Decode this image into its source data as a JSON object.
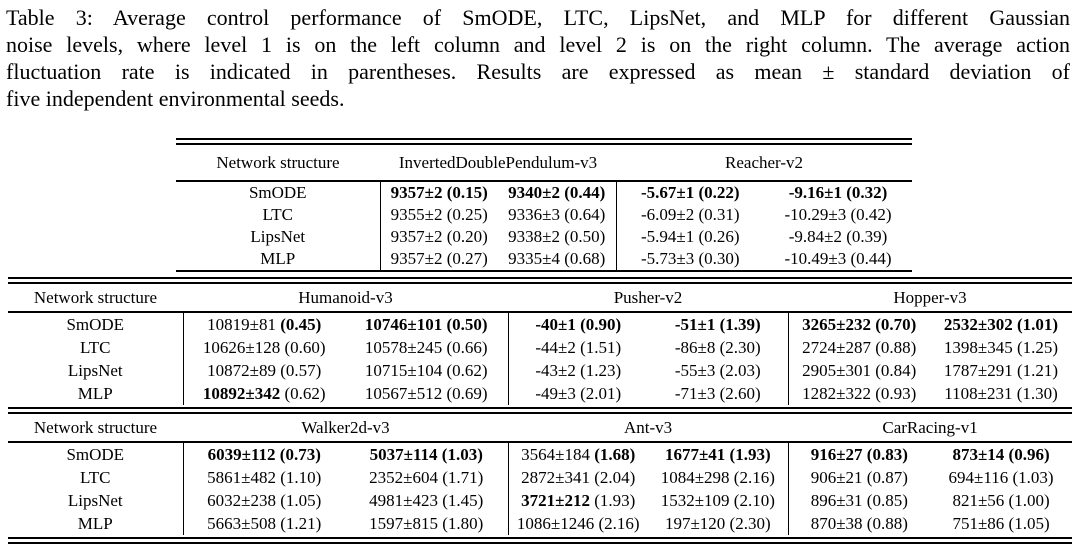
{
  "caption": {
    "lines": [
      "Table 3: Average control performance of SmODE, LTC, LipsNet, and MLP for different Gaussian",
      "noise levels, where level 1 is on the left column and level 2 is on the right column. The average action",
      "fluctuation rate is indicated in parentheses. Results are expressed as mean ± standard deviation of",
      "five independent environmental seeds."
    ]
  },
  "tables": [
    {
      "col_header": "Network structure",
      "envs": [
        "InvertedDoublePendulum-v3",
        "Reacher-v2"
      ],
      "rows": [
        {
          "name": "SmODE",
          "cells": [
            {
              "mean": "9357±2",
              "rate": "(0.15)",
              "bold": "all"
            },
            {
              "mean": "9340±2",
              "rate": "(0.44)",
              "bold": "all"
            },
            {
              "mean": "-5.67±1",
              "rate": "(0.22)",
              "bold": "all"
            },
            {
              "mean": "-9.16±1",
              "rate": "(0.32)",
              "bold": "all"
            }
          ]
        },
        {
          "name": "LTC",
          "cells": [
            {
              "mean": "9355±2",
              "rate": "(0.25)",
              "bold": "none"
            },
            {
              "mean": "9336±3",
              "rate": "(0.64)",
              "bold": "none"
            },
            {
              "mean": "-6.09±2",
              "rate": "(0.31)",
              "bold": "none"
            },
            {
              "mean": "-10.29±3",
              "rate": "(0.42)",
              "bold": "none"
            }
          ]
        },
        {
          "name": "LipsNet",
          "cells": [
            {
              "mean": "9357±2",
              "rate": "(0.20)",
              "bold": "none"
            },
            {
              "mean": "9338±2",
              "rate": "(0.50)",
              "bold": "none"
            },
            {
              "mean": "-5.94±1",
              "rate": "(0.26)",
              "bold": "none"
            },
            {
              "mean": "-9.84±2",
              "rate": "(0.39)",
              "bold": "none"
            }
          ]
        },
        {
          "name": "MLP",
          "cells": [
            {
              "mean": "9357±2",
              "rate": "(0.27)",
              "bold": "none"
            },
            {
              "mean": "9335±4",
              "rate": "(0.68)",
              "bold": "none"
            },
            {
              "mean": "-5.73±3",
              "rate": "(0.30)",
              "bold": "none"
            },
            {
              "mean": "-10.49±3",
              "rate": "(0.44)",
              "bold": "none"
            }
          ]
        }
      ]
    },
    {
      "col_header": "Network structure",
      "envs": [
        "Humanoid-v3",
        "Pusher-v2",
        "Hopper-v3"
      ],
      "rows": [
        {
          "name": "SmODE",
          "cells": [
            {
              "mean": "10819±81",
              "rate": "(0.45)",
              "bold": "rate"
            },
            {
              "mean": "10746±101",
              "rate": "(0.50)",
              "bold": "all"
            },
            {
              "mean": "-40±1",
              "rate": "(0.90)",
              "bold": "all"
            },
            {
              "mean": "-51±1",
              "rate": "(1.39)",
              "bold": "all"
            },
            {
              "mean": "3265±232",
              "rate": "(0.70)",
              "bold": "all"
            },
            {
              "mean": "2532±302",
              "rate": "(1.01)",
              "bold": "all"
            }
          ]
        },
        {
          "name": "LTC",
          "cells": [
            {
              "mean": "10626±128",
              "rate": "(0.60)",
              "bold": "none"
            },
            {
              "mean": "10578±245",
              "rate": "(0.66)",
              "bold": "none"
            },
            {
              "mean": "-44±2",
              "rate": "(1.51)",
              "bold": "none"
            },
            {
              "mean": "-86±8",
              "rate": "(2.30)",
              "bold": "none"
            },
            {
              "mean": "2724±287",
              "rate": "(0.88)",
              "bold": "none"
            },
            {
              "mean": "1398±345",
              "rate": "(1.25)",
              "bold": "none"
            }
          ]
        },
        {
          "name": "LipsNet",
          "cells": [
            {
              "mean": "10872±89",
              "rate": "(0.57)",
              "bold": "none"
            },
            {
              "mean": "10715±104",
              "rate": "(0.62)",
              "bold": "none"
            },
            {
              "mean": "-43±2",
              "rate": "(1.23)",
              "bold": "none"
            },
            {
              "mean": "-55±3",
              "rate": "(2.03)",
              "bold": "none"
            },
            {
              "mean": "2905±301",
              "rate": "(0.84)",
              "bold": "none"
            },
            {
              "mean": "1787±291",
              "rate": "(1.21)",
              "bold": "none"
            }
          ]
        },
        {
          "name": "MLP",
          "cells": [
            {
              "mean": "10892±342",
              "rate": "(0.62)",
              "bold": "mean"
            },
            {
              "mean": "10567±512",
              "rate": "(0.69)",
              "bold": "none"
            },
            {
              "mean": "-49±3",
              "rate": "(2.01)",
              "bold": "none"
            },
            {
              "mean": "-71±3",
              "rate": "(2.60)",
              "bold": "none"
            },
            {
              "mean": "1282±322",
              "rate": "(0.93)",
              "bold": "none"
            },
            {
              "mean": "1108±231",
              "rate": "(1.30)",
              "bold": "none"
            }
          ]
        }
      ]
    },
    {
      "col_header": "Network structure",
      "envs": [
        "Walker2d-v3",
        "Ant-v3",
        "CarRacing-v1"
      ],
      "rows": [
        {
          "name": "SmODE",
          "cells": [
            {
              "mean": "6039±112",
              "rate": "(0.73)",
              "bold": "all"
            },
            {
              "mean": "5037±114",
              "rate": "(1.03)",
              "bold": "all"
            },
            {
              "mean": "3564±184",
              "rate": "(1.68)",
              "bold": "rate"
            },
            {
              "mean": "1677±41",
              "rate": "(1.93)",
              "bold": "all"
            },
            {
              "mean": "916±27",
              "rate": "(0.83)",
              "bold": "all"
            },
            {
              "mean": "873±14",
              "rate": "(0.96)",
              "bold": "all"
            }
          ]
        },
        {
          "name": "LTC",
          "cells": [
            {
              "mean": "5861±482",
              "rate": "(1.10)",
              "bold": "none"
            },
            {
              "mean": "2352±604",
              "rate": "(1.71)",
              "bold": "none"
            },
            {
              "mean": "2872±341",
              "rate": "(2.04)",
              "bold": "none"
            },
            {
              "mean": "1084±298",
              "rate": "(2.16)",
              "bold": "none"
            },
            {
              "mean": "906±21",
              "rate": "(0.87)",
              "bold": "none"
            },
            {
              "mean": "694±116",
              "rate": "(1.03)",
              "bold": "none"
            }
          ]
        },
        {
          "name": "LipsNet",
          "cells": [
            {
              "mean": "6032±238",
              "rate": "(1.05)",
              "bold": "none"
            },
            {
              "mean": "4981±423",
              "rate": "(1.45)",
              "bold": "none"
            },
            {
              "mean": "3721±212",
              "rate": "(1.93)",
              "bold": "mean"
            },
            {
              "mean": "1532±109",
              "rate": "(2.10)",
              "bold": "none"
            },
            {
              "mean": "896±31",
              "rate": "(0.85)",
              "bold": "none"
            },
            {
              "mean": "821±56",
              "rate": "(1.00)",
              "bold": "none"
            }
          ]
        },
        {
          "name": "MLP",
          "cells": [
            {
              "mean": "5663±508",
              "rate": "(1.21)",
              "bold": "none"
            },
            {
              "mean": "1597±815",
              "rate": "(1.80)",
              "bold": "none"
            },
            {
              "mean": "1086±1246",
              "rate": "(2.16)",
              "bold": "none"
            },
            {
              "mean": "197±120",
              "rate": "(2.30)",
              "bold": "none"
            },
            {
              "mean": "870±38",
              "rate": "(0.88)",
              "bold": "none"
            },
            {
              "mean": "751±86",
              "rate": "(1.05)",
              "bold": "none"
            }
          ]
        }
      ]
    }
  ]
}
